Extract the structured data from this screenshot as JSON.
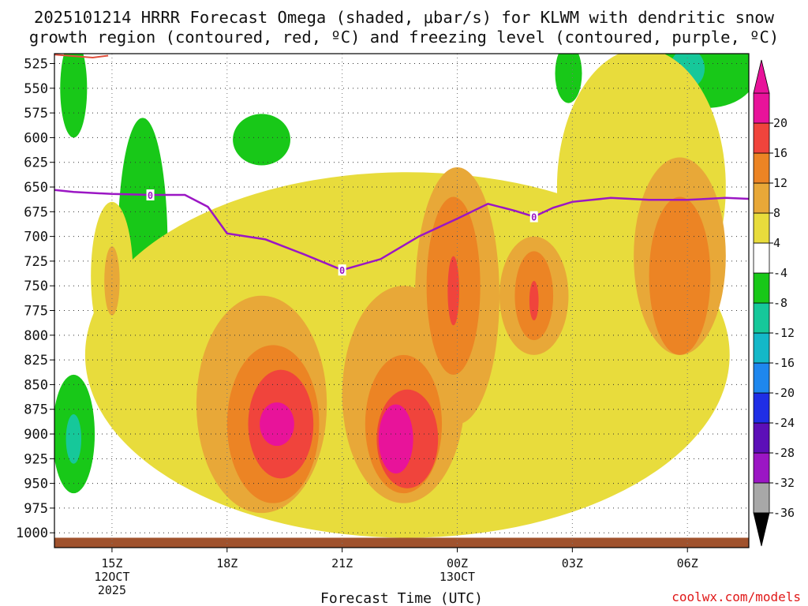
{
  "chart_data": {
    "type": "heatmap",
    "title_line1": "2025101214 HRRR Forecast Omega (shaded, μbar/s) for KLWM with dendritic snow",
    "title_line2": "growth region (contoured, red, ºC) and freezing level (contoured, purple, ºC)",
    "xlabel": "Forecast Time (UTC)",
    "credit": "coolwx.com/models",
    "x_units": "hours after 2025-10-12 14Z",
    "xlim": [
      -0.5,
      17.6
    ],
    "x_ticks": [
      {
        "hour": 1,
        "label": "15Z",
        "sub1": "12OCT",
        "sub2": "2025"
      },
      {
        "hour": 4,
        "label": "18Z",
        "sub1": "",
        "sub2": ""
      },
      {
        "hour": 7,
        "label": "21Z",
        "sub1": "",
        "sub2": ""
      },
      {
        "hour": 10,
        "label": "00Z",
        "sub1": "13OCT",
        "sub2": ""
      },
      {
        "hour": 13,
        "label": "03Z",
        "sub1": "",
        "sub2": ""
      },
      {
        "hour": 16,
        "label": "06Z",
        "sub1": "",
        "sub2": ""
      }
    ],
    "y_units": "hPa",
    "ylim": [
      1015,
      515
    ],
    "y_ticks": [
      "525",
      "550",
      "575",
      "600",
      "625",
      "650",
      "675",
      "700",
      "725",
      "750",
      "775",
      "800",
      "825",
      "850",
      "875",
      "900",
      "925",
      "950",
      "975",
      "1000"
    ],
    "colorbar": {
      "labels": [
        "20",
        "16",
        "12",
        "8",
        "4",
        "-4",
        "-8",
        "-12",
        "-16",
        "-20",
        "-24",
        "-28",
        "-32",
        "-36"
      ],
      "bins": [
        {
          "lo": -36,
          "hi": -32,
          "color": "#a8a8a8"
        },
        {
          "lo": -32,
          "hi": -28,
          "color": "#9b16c4"
        },
        {
          "lo": -28,
          "hi": -24,
          "color": "#5c0fb8"
        },
        {
          "lo": -24,
          "hi": -20,
          "color": "#1f2ee6"
        },
        {
          "lo": -20,
          "hi": -16,
          "color": "#1e87ee"
        },
        {
          "lo": -16,
          "hi": -12,
          "color": "#14b8c8"
        },
        {
          "lo": -12,
          "hi": -8,
          "color": "#16c89a"
        },
        {
          "lo": -8,
          "hi": -4,
          "color": "#18c818"
        },
        {
          "lo": -4,
          "hi": 4,
          "color": "#ffffff"
        },
        {
          "lo": 4,
          "hi": 8,
          "color": "#e8dc3c"
        },
        {
          "lo": 8,
          "hi": 12,
          "color": "#e8a838"
        },
        {
          "lo": 12,
          "hi": 16,
          "color": "#ec8424"
        },
        {
          "lo": 16,
          "hi": 20,
          "color": "#f0443c"
        },
        {
          "lo": 20,
          "hi": 24,
          "color": "#e8139a"
        }
      ],
      "over_color": "#e8139a",
      "under_color": "#000000"
    },
    "omega_regions": [
      {
        "name": "green-region-top-left",
        "value": -6,
        "cx": 0.0,
        "cy": 550,
        "rx": 0.35,
        "ry": 50
      },
      {
        "name": "green-region-left-column",
        "value": -6,
        "cx": 1.8,
        "cy": 710,
        "rx": 0.65,
        "ry": 130
      },
      {
        "name": "green-region-small-box",
        "value": -6,
        "cx": 4.9,
        "cy": 602,
        "rx": 0.75,
        "ry": 26
      },
      {
        "name": "green-region-lower-left",
        "value": -6,
        "cx": 0.0,
        "cy": 900,
        "rx": 0.55,
        "ry": 60
      },
      {
        "name": "teal-region-lower-left",
        "value": -10,
        "cx": 0.0,
        "cy": 905,
        "rx": 0.2,
        "ry": 25
      },
      {
        "name": "green-region-speck",
        "value": -6,
        "cx": 3.9,
        "cy": 810,
        "rx": 0.15,
        "ry": 20
      },
      {
        "name": "green-region-top-right",
        "value": -6,
        "cx": 16.5,
        "cy": 535,
        "rx": 1.3,
        "ry": 35
      },
      {
        "name": "teal-region-top-right",
        "value": -10,
        "cx": 16.0,
        "cy": 530,
        "rx": 0.45,
        "ry": 20
      },
      {
        "name": "green-region-top-mid",
        "value": -6,
        "cx": 12.9,
        "cy": 535,
        "rx": 0.35,
        "ry": 30
      },
      {
        "name": "yellow-region-main",
        "value": 6,
        "cx": 8.7,
        "cy": 820,
        "rx": 8.4,
        "ry": 185
      },
      {
        "name": "yellow-region-upper-right",
        "value": 6,
        "cx": 14.8,
        "cy": 650,
        "rx": 2.2,
        "ry": 140
      },
      {
        "name": "yellow-region-left",
        "value": 6,
        "cx": 1.0,
        "cy": 740,
        "rx": 0.55,
        "ry": 75
      },
      {
        "name": "orange-region-left",
        "value": 10,
        "cx": 1.0,
        "cy": 745,
        "rx": 0.2,
        "ry": 35
      },
      {
        "name": "orange-region-low-1",
        "value": 10,
        "cx": 4.9,
        "cy": 870,
        "rx": 1.7,
        "ry": 110
      },
      {
        "name": "orange-region-low-2",
        "value": 10,
        "cx": 8.6,
        "cy": 860,
        "rx": 1.6,
        "ry": 110
      },
      {
        "name": "orange-region-mid",
        "value": 10,
        "cx": 10.0,
        "cy": 760,
        "rx": 1.1,
        "ry": 130
      },
      {
        "name": "orange-region-mid-2",
        "value": 10,
        "cx": 12.0,
        "cy": 760,
        "rx": 0.9,
        "ry": 60
      },
      {
        "name": "orange-region-right",
        "value": 10,
        "cx": 15.8,
        "cy": 720,
        "rx": 1.2,
        "ry": 100
      },
      {
        "name": "dark-orange-low-1",
        "value": 14,
        "cx": 5.2,
        "cy": 890,
        "rx": 1.2,
        "ry": 80
      },
      {
        "name": "dark-orange-low-2",
        "value": 14,
        "cx": 8.6,
        "cy": 890,
        "rx": 1.0,
        "ry": 70
      },
      {
        "name": "dark-orange-mid",
        "value": 14,
        "cx": 9.9,
        "cy": 750,
        "rx": 0.7,
        "ry": 90
      },
      {
        "name": "dark-orange-mid-2",
        "value": 14,
        "cx": 12.0,
        "cy": 760,
        "rx": 0.5,
        "ry": 45
      },
      {
        "name": "dark-orange-right",
        "value": 14,
        "cx": 15.8,
        "cy": 740,
        "rx": 0.8,
        "ry": 80
      },
      {
        "name": "red-region-low-1",
        "value": 18,
        "cx": 5.4,
        "cy": 890,
        "rx": 0.85,
        "ry": 55
      },
      {
        "name": "red-region-low-2",
        "value": 18,
        "cx": 8.7,
        "cy": 905,
        "rx": 0.8,
        "ry": 50
      },
      {
        "name": "red-region-mid",
        "value": 18,
        "cx": 9.9,
        "cy": 755,
        "rx": 0.15,
        "ry": 35
      },
      {
        "name": "red-region-mid-2",
        "value": 18,
        "cx": 12.0,
        "cy": 765,
        "rx": 0.12,
        "ry": 20
      },
      {
        "name": "magenta-region-low-1",
        "value": 22,
        "cx": 5.3,
        "cy": 890,
        "rx": 0.45,
        "ry": 22
      },
      {
        "name": "magenta-region-low-2",
        "value": 22,
        "cx": 8.4,
        "cy": 905,
        "rx": 0.45,
        "ry": 35
      }
    ],
    "freezing_level": {
      "label": "0",
      "color": "#9b16c4",
      "points": [
        [
          -0.5,
          653
        ],
        [
          0.0,
          655
        ],
        [
          1.0,
          657
        ],
        [
          2.0,
          658
        ],
        [
          2.9,
          658
        ],
        [
          3.5,
          670
        ],
        [
          4.0,
          697
        ],
        [
          5.0,
          703
        ],
        [
          6.0,
          718
        ],
        [
          7.0,
          734
        ],
        [
          8.0,
          723
        ],
        [
          9.0,
          700
        ],
        [
          10.0,
          682
        ],
        [
          10.8,
          667
        ],
        [
          11.5,
          674
        ],
        [
          12.0,
          680
        ],
        [
          12.5,
          671
        ],
        [
          13.0,
          665
        ],
        [
          14.0,
          661
        ],
        [
          15.0,
          663
        ],
        [
          16.0,
          663
        ],
        [
          17.0,
          661
        ],
        [
          17.6,
          662
        ]
      ],
      "labeled_points": [
        [
          2.0,
          658
        ],
        [
          7.0,
          734
        ],
        [
          12.0,
          680
        ]
      ]
    },
    "dendritic_growth_region": {
      "color": "#e0503c",
      "points": [
        [
          -0.5,
          516
        ],
        [
          0.5,
          519
        ],
        [
          0.9,
          517
        ]
      ]
    }
  }
}
